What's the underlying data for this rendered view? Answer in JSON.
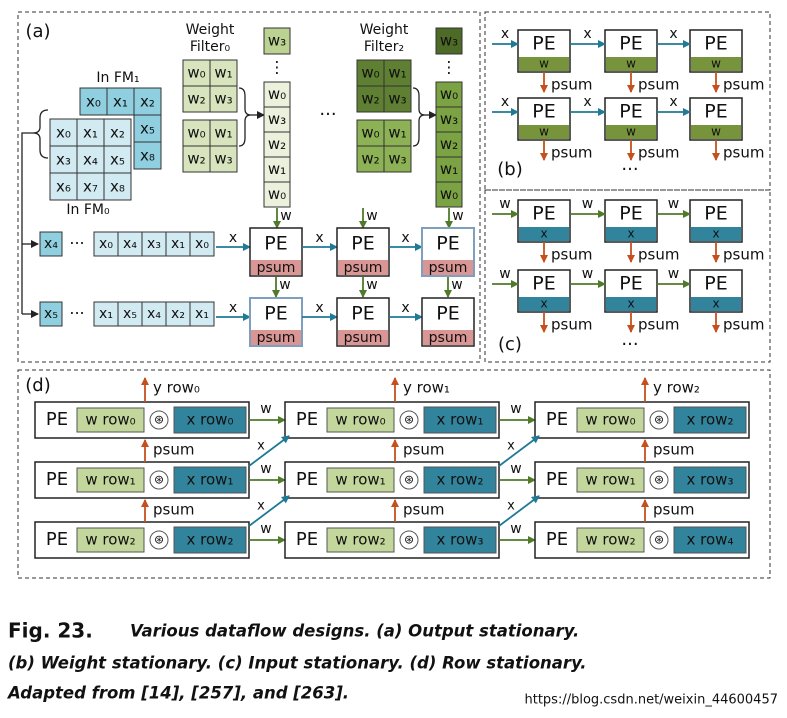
{
  "panel_a": {
    "label": "(a)",
    "in_fm1": {
      "title": "In FM₁",
      "top_row": [
        "x₀",
        "x₁",
        "x₂"
      ],
      "right_col": [
        "x₅",
        "x₈"
      ]
    },
    "in_fm0": {
      "title": "In FM₀",
      "cells": [
        [
          "x₀",
          "x₁",
          "x₂"
        ],
        [
          "x₃",
          "x₄",
          "x₅"
        ],
        [
          "x₆",
          "x₇",
          "x₈"
        ]
      ]
    },
    "filters": [
      {
        "title": [
          "Weight",
          "Filter₀"
        ],
        "cells": [
          [
            "w₀",
            "w₁"
          ],
          [
            "w₂",
            "w₃"
          ]
        ],
        "column": [
          "w₃",
          "⋮",
          "w₀",
          "w₃",
          "w₂",
          "w₁",
          "w₀"
        ]
      },
      {
        "title": [
          "Weight",
          "Filter₂"
        ],
        "cells": [
          [
            "w₀",
            "w₁"
          ],
          [
            "w₂",
            "w₃"
          ]
        ],
        "column": [
          "w₃",
          "⋮",
          "w₀",
          "w₃",
          "w₂",
          "w₁",
          "w₀"
        ]
      }
    ],
    "filter_ellipsis": "···",
    "rows": [
      [
        "x₄",
        "···",
        "x₀",
        "x₄",
        "x₃",
        "x₁",
        "x₀"
      ],
      [
        "x₅",
        "···",
        "x₁",
        "x₅",
        "x₄",
        "x₂",
        "x₁"
      ]
    ],
    "pe": "PE",
    "psum": "psum",
    "w": "w",
    "x": "x"
  },
  "panel_b": {
    "label": "(b)",
    "pe": "PE",
    "x": "x",
    "w": "w",
    "psum": "psum",
    "ellipsis": "···"
  },
  "panel_c": {
    "label": "(c)",
    "pe": "PE",
    "x": "x",
    "w": "w",
    "psum": "psum",
    "ellipsis": "···"
  },
  "panel_d": {
    "label": "(d)",
    "pe": "PE",
    "w": "w",
    "x": "x",
    "psum": "psum",
    "conv": "⊛",
    "w_rows": [
      "w row₀",
      "w row₁",
      "w row₂"
    ],
    "x_rows": [
      "x row₀",
      "x row₁",
      "x row₂",
      "x row₃",
      "x row₄"
    ],
    "y_rows": [
      "y row₀",
      "y row₁",
      "y row₂"
    ]
  },
  "caption": {
    "figure": "Fig. 23.",
    "lines": [
      "Various dataflow designs. (a) Output stationary.",
      "(b) Weight stationary. (c) Input stationary. (d) Row stationary.",
      "Adapted from [14], [257], and [263]."
    ],
    "watermark": "https://blog.csdn.net/weixin_44600457"
  }
}
